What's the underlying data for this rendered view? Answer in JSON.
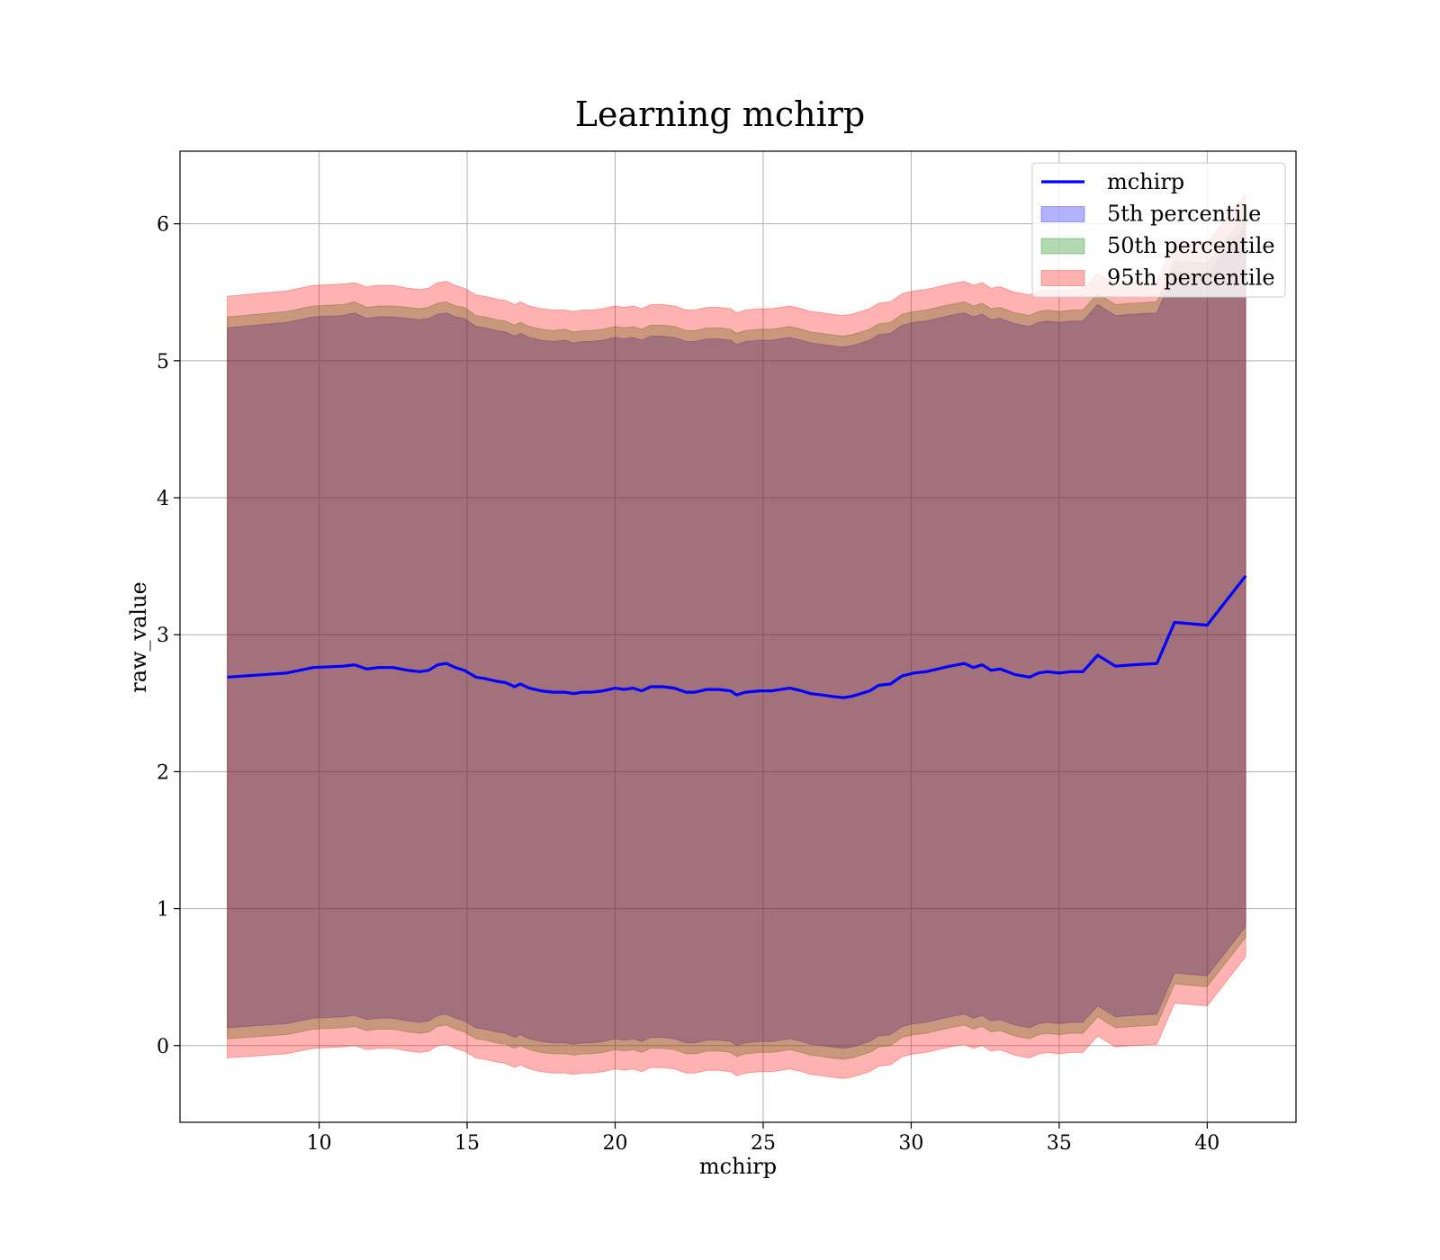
{
  "chart_data": {
    "type": "line",
    "title": "Learning mchirp",
    "xlabel": "mchirp",
    "ylabel": "raw_value",
    "xlim": [
      5.3,
      43.0
    ],
    "ylim": [
      -0.56,
      6.53
    ],
    "xticks": [
      10,
      15,
      20,
      25,
      30,
      35,
      40
    ],
    "yticks": [
      0,
      1,
      2,
      3,
      4,
      5,
      6
    ],
    "grid": true,
    "legend_position": "top-right",
    "colors": {
      "line": "#0000ff",
      "band_5": "#0000ff",
      "band_50": "#008000",
      "band_95": "#ff0000"
    },
    "legend": [
      {
        "label": "mchirp",
        "kind": "line",
        "color": "#0000ff"
      },
      {
        "label": "5th percentile",
        "kind": "band",
        "color": "#0000ff"
      },
      {
        "label": "50th percentile",
        "kind": "band",
        "color": "#008000"
      },
      {
        "label": "95th percentile",
        "kind": "band",
        "color": "#ff0000"
      }
    ],
    "x": [
      6.9,
      8.9,
      9.8,
      10.8,
      11.2,
      11.6,
      12.0,
      12.5,
      13.0,
      13.4,
      13.7,
      14.0,
      14.3,
      14.6,
      14.9,
      15.3,
      15.6,
      16.0,
      16.3,
      16.6,
      16.8,
      17.1,
      17.5,
      17.9,
      18.3,
      18.6,
      18.9,
      19.2,
      19.6,
      20.0,
      20.3,
      20.6,
      20.9,
      21.2,
      21.6,
      22.0,
      22.4,
      22.7,
      23.1,
      23.5,
      23.9,
      24.1,
      24.4,
      24.9,
      25.3,
      25.6,
      25.9,
      26.3,
      26.6,
      27.0,
      27.3,
      27.7,
      28.0,
      28.3,
      28.6,
      28.9,
      29.3,
      29.7,
      30.1,
      30.5,
      30.9,
      31.3,
      31.8,
      32.1,
      32.4,
      32.7,
      33.0,
      33.5,
      34.0,
      34.3,
      34.6,
      35.0,
      35.4,
      35.8,
      36.3,
      36.9,
      37.5,
      38.3,
      38.9,
      40.0,
      41.3
    ],
    "series": [
      {
        "name": "mchirp",
        "values": [
          2.69,
          2.72,
          2.76,
          2.77,
          2.78,
          2.75,
          2.76,
          2.76,
          2.74,
          2.73,
          2.74,
          2.78,
          2.79,
          2.76,
          2.74,
          2.69,
          2.68,
          2.66,
          2.65,
          2.62,
          2.64,
          2.61,
          2.59,
          2.58,
          2.58,
          2.57,
          2.58,
          2.58,
          2.59,
          2.61,
          2.6,
          2.61,
          2.59,
          2.62,
          2.62,
          2.61,
          2.58,
          2.58,
          2.6,
          2.6,
          2.59,
          2.56,
          2.58,
          2.59,
          2.59,
          2.6,
          2.61,
          2.59,
          2.57,
          2.56,
          2.55,
          2.54,
          2.55,
          2.57,
          2.59,
          2.63,
          2.64,
          2.7,
          2.72,
          2.73,
          2.75,
          2.77,
          2.79,
          2.76,
          2.78,
          2.74,
          2.75,
          2.71,
          2.69,
          2.72,
          2.73,
          2.72,
          2.73,
          2.73,
          2.85,
          2.77,
          2.78,
          2.79,
          3.09,
          3.07,
          3.43
        ]
      }
    ],
    "bands": [
      {
        "name": "5th percentile",
        "upper": [
          5.24,
          5.28,
          5.32,
          5.33,
          5.35,
          5.31,
          5.32,
          5.32,
          5.31,
          5.3,
          5.31,
          5.34,
          5.35,
          5.32,
          5.31,
          5.25,
          5.24,
          5.22,
          5.21,
          5.18,
          5.2,
          5.17,
          5.15,
          5.14,
          5.15,
          5.13,
          5.14,
          5.14,
          5.15,
          5.17,
          5.16,
          5.17,
          5.15,
          5.18,
          5.18,
          5.17,
          5.14,
          5.14,
          5.16,
          5.16,
          5.15,
          5.12,
          5.14,
          5.15,
          5.15,
          5.16,
          5.17,
          5.15,
          5.13,
          5.12,
          5.11,
          5.1,
          5.11,
          5.13,
          5.15,
          5.19,
          5.2,
          5.26,
          5.28,
          5.29,
          5.31,
          5.33,
          5.35,
          5.32,
          5.34,
          5.3,
          5.31,
          5.27,
          5.25,
          5.28,
          5.29,
          5.28,
          5.29,
          5.29,
          5.41,
          5.33,
          5.34,
          5.35,
          5.65,
          5.63,
          5.99
        ],
        "lower": [
          0.13,
          0.16,
          0.2,
          0.21,
          0.22,
          0.19,
          0.2,
          0.2,
          0.18,
          0.17,
          0.18,
          0.22,
          0.23,
          0.2,
          0.18,
          0.13,
          0.12,
          0.1,
          0.09,
          0.06,
          0.08,
          0.05,
          0.03,
          0.02,
          0.02,
          0.01,
          0.02,
          0.02,
          0.03,
          0.05,
          0.04,
          0.05,
          0.03,
          0.06,
          0.06,
          0.05,
          0.02,
          0.02,
          0.04,
          0.04,
          0.03,
          0.0,
          0.02,
          0.03,
          0.03,
          0.04,
          0.05,
          0.03,
          0.01,
          0.0,
          -0.01,
          -0.02,
          -0.01,
          0.01,
          0.03,
          0.07,
          0.08,
          0.14,
          0.16,
          0.17,
          0.19,
          0.21,
          0.23,
          0.2,
          0.22,
          0.18,
          0.19,
          0.15,
          0.13,
          0.16,
          0.17,
          0.16,
          0.17,
          0.17,
          0.29,
          0.21,
          0.22,
          0.23,
          0.53,
          0.51,
          0.87
        ]
      },
      {
        "name": "50th percentile",
        "upper": [
          5.32,
          5.36,
          5.4,
          5.41,
          5.43,
          5.39,
          5.4,
          5.4,
          5.39,
          5.38,
          5.39,
          5.42,
          5.43,
          5.4,
          5.39,
          5.33,
          5.32,
          5.3,
          5.29,
          5.26,
          5.28,
          5.25,
          5.23,
          5.22,
          5.23,
          5.21,
          5.22,
          5.22,
          5.23,
          5.25,
          5.24,
          5.25,
          5.23,
          5.26,
          5.26,
          5.25,
          5.22,
          5.22,
          5.24,
          5.24,
          5.23,
          5.2,
          5.22,
          5.23,
          5.23,
          5.24,
          5.25,
          5.23,
          5.21,
          5.2,
          5.19,
          5.18,
          5.19,
          5.21,
          5.23,
          5.27,
          5.28,
          5.34,
          5.36,
          5.37,
          5.39,
          5.41,
          5.43,
          5.4,
          5.42,
          5.38,
          5.39,
          5.35,
          5.33,
          5.36,
          5.37,
          5.36,
          5.37,
          5.37,
          5.49,
          5.41,
          5.42,
          5.43,
          5.73,
          5.71,
          6.07
        ],
        "lower": [
          0.05,
          0.08,
          0.12,
          0.13,
          0.14,
          0.11,
          0.12,
          0.12,
          0.1,
          0.09,
          0.1,
          0.14,
          0.15,
          0.12,
          0.1,
          0.05,
          0.04,
          0.02,
          0.01,
          -0.02,
          0.0,
          -0.03,
          -0.05,
          -0.06,
          -0.06,
          -0.07,
          -0.06,
          -0.06,
          -0.05,
          -0.03,
          -0.04,
          -0.03,
          -0.05,
          -0.02,
          -0.02,
          -0.03,
          -0.06,
          -0.06,
          -0.04,
          -0.04,
          -0.05,
          -0.08,
          -0.06,
          -0.05,
          -0.05,
          -0.04,
          -0.03,
          -0.05,
          -0.07,
          -0.08,
          -0.09,
          -0.1,
          -0.09,
          -0.07,
          -0.05,
          -0.01,
          0.0,
          0.06,
          0.08,
          0.09,
          0.11,
          0.13,
          0.15,
          0.12,
          0.14,
          0.1,
          0.11,
          0.07,
          0.05,
          0.08,
          0.09,
          0.08,
          0.09,
          0.09,
          0.21,
          0.13,
          0.14,
          0.15,
          0.45,
          0.43,
          0.79
        ]
      },
      {
        "name": "95th percentile",
        "upper": [
          5.47,
          5.51,
          5.55,
          5.56,
          5.57,
          5.54,
          5.55,
          5.55,
          5.53,
          5.52,
          5.53,
          5.57,
          5.58,
          5.55,
          5.53,
          5.48,
          5.47,
          5.45,
          5.44,
          5.41,
          5.43,
          5.4,
          5.38,
          5.37,
          5.37,
          5.36,
          5.37,
          5.37,
          5.38,
          5.4,
          5.39,
          5.4,
          5.38,
          5.41,
          5.41,
          5.4,
          5.37,
          5.37,
          5.39,
          5.39,
          5.38,
          5.35,
          5.37,
          5.38,
          5.38,
          5.39,
          5.4,
          5.38,
          5.36,
          5.35,
          5.34,
          5.33,
          5.34,
          5.36,
          5.38,
          5.42,
          5.43,
          5.49,
          5.51,
          5.52,
          5.54,
          5.56,
          5.58,
          5.55,
          5.57,
          5.53,
          5.54,
          5.5,
          5.48,
          5.51,
          5.52,
          5.51,
          5.52,
          5.52,
          5.64,
          5.56,
          5.57,
          5.58,
          5.88,
          5.86,
          6.22
        ],
        "lower": [
          -0.09,
          -0.06,
          -0.02,
          -0.01,
          0.0,
          -0.03,
          -0.02,
          -0.02,
          -0.04,
          -0.05,
          -0.04,
          0.0,
          0.01,
          -0.02,
          -0.04,
          -0.09,
          -0.1,
          -0.12,
          -0.13,
          -0.16,
          -0.14,
          -0.17,
          -0.19,
          -0.2,
          -0.2,
          -0.21,
          -0.2,
          -0.2,
          -0.19,
          -0.17,
          -0.18,
          -0.17,
          -0.19,
          -0.16,
          -0.16,
          -0.17,
          -0.2,
          -0.2,
          -0.18,
          -0.18,
          -0.19,
          -0.22,
          -0.2,
          -0.19,
          -0.19,
          -0.18,
          -0.17,
          -0.19,
          -0.21,
          -0.22,
          -0.23,
          -0.24,
          -0.23,
          -0.21,
          -0.19,
          -0.15,
          -0.14,
          -0.08,
          -0.06,
          -0.05,
          -0.03,
          -0.01,
          0.01,
          -0.02,
          0.0,
          -0.04,
          -0.03,
          -0.07,
          -0.09,
          -0.06,
          -0.05,
          -0.06,
          -0.05,
          -0.05,
          0.07,
          -0.01,
          0.0,
          0.01,
          0.31,
          0.29,
          0.65
        ]
      }
    ]
  }
}
